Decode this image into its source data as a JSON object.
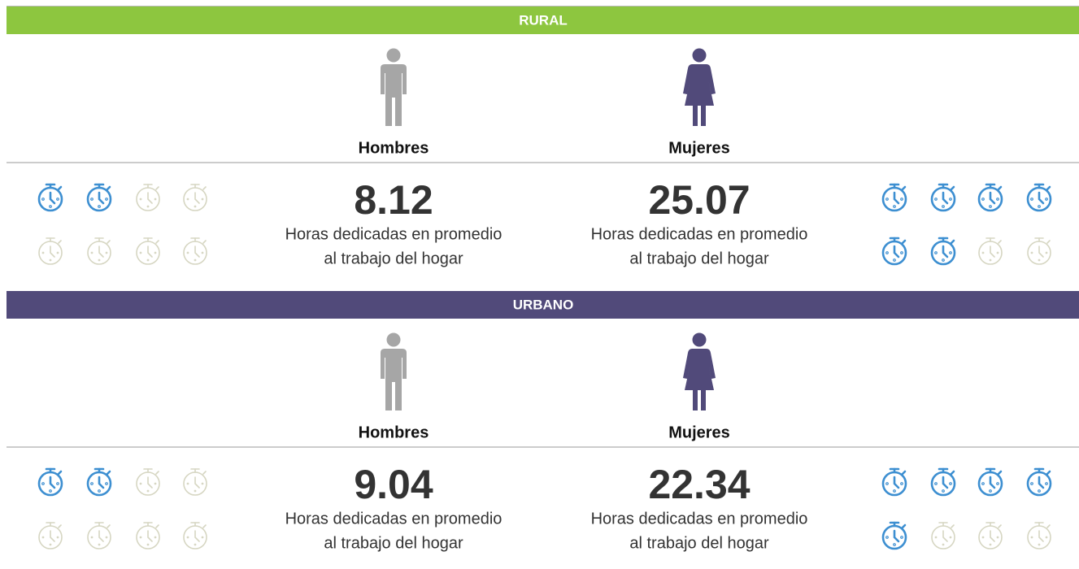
{
  "sections": [
    {
      "title": "RURAL",
      "groups": [
        {
          "label": "Hombres",
          "value": "8.12",
          "description": [
            "Horas dedicadas en promedio",
            "al trabajo del hogar"
          ],
          "icons_filled": 2,
          "icons_total": 8
        },
        {
          "label": "Mujeres",
          "value": "25.07",
          "description": [
            "Horas dedicadas en promedio",
            "al trabajo del hogar"
          ],
          "icons_filled": 6,
          "icons_total": 8
        }
      ]
    },
    {
      "title": "URBANO",
      "groups": [
        {
          "label": "Hombres",
          "value": "9.04",
          "description": [
            "Horas dedicadas en promedio",
            "al trabajo del hogar"
          ],
          "icons_filled": 2,
          "icons_total": 8
        },
        {
          "label": "Mujeres",
          "value": "22.34",
          "description": [
            "Horas dedicadas en promedio",
            "al trabajo del hogar"
          ],
          "icons_filled": 5,
          "icons_total": 8
        }
      ]
    }
  ]
}
